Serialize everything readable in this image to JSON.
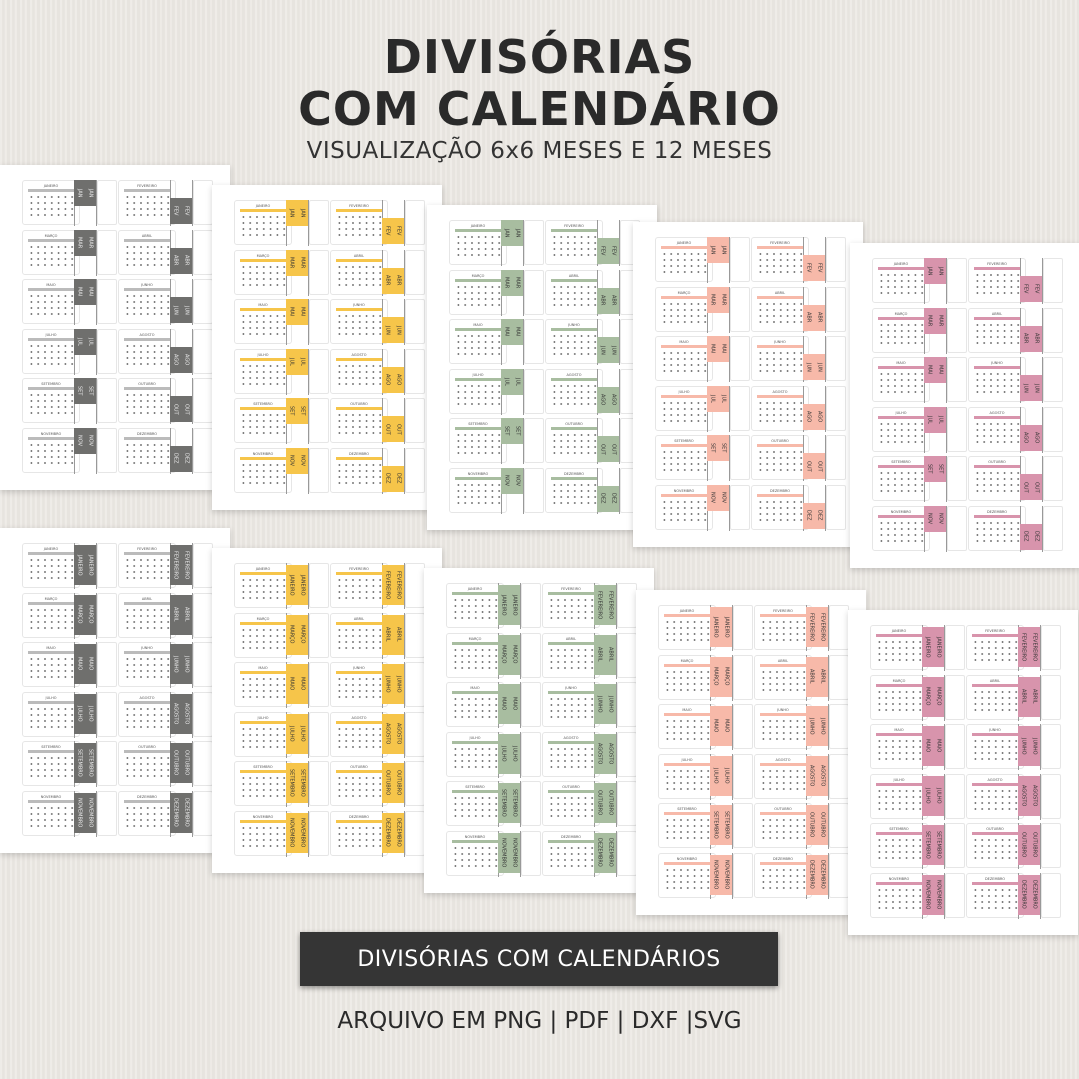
{
  "header": {
    "title_line1": "DIVISÓRIAS",
    "title_line2": "COM CALENDÁRIO",
    "subtitle": "VISUALIZAÇÃO 6x6 MESES E 12 MESES"
  },
  "months": [
    "JANEIRO",
    "FEVEREIRO",
    "MARÇO",
    "ABRIL",
    "MAIO",
    "JUNHO",
    "JULHO",
    "AGOSTO",
    "SETEMBRO",
    "OUTUBRO",
    "NOVEMBRO",
    "DEZEMBRO"
  ],
  "month_abbr": [
    "JAN",
    "FEV",
    "MAR",
    "ABR",
    "MAI",
    "JUN",
    "JUL",
    "AGO",
    "SET",
    "OUT",
    "NOV",
    "DEZ"
  ],
  "sheet_colors": [
    {
      "name": "gray",
      "hex": "#6f6f6d"
    },
    {
      "name": "yellow",
      "hex": "#f6c54a"
    },
    {
      "name": "sage-green",
      "hex": "#a8bda0"
    },
    {
      "name": "peach",
      "hex": "#f7b9a9"
    },
    {
      "name": "pink",
      "hex": "#d894ac"
    }
  ],
  "rows": [
    {
      "view": "6x6 meses",
      "tab_text": "abbr"
    },
    {
      "view": "12 meses",
      "tab_text": "full"
    }
  ],
  "banner": {
    "label": "DIVISÓRIAS COM CALENDÁRIOS"
  },
  "footer": {
    "formats": "ARQUIVO EM PNG  |  PDF  |  DXF  |SVG"
  }
}
